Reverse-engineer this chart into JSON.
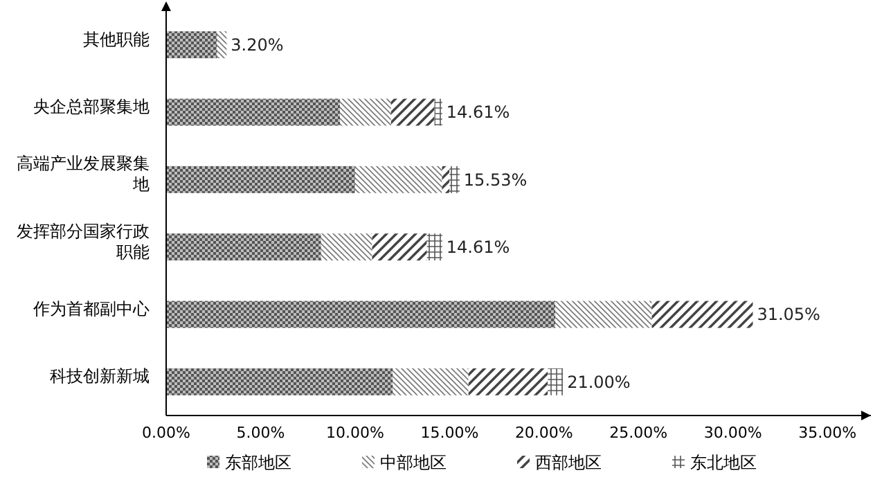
{
  "chart_data": {
    "type": "bar",
    "orientation": "horizontal",
    "stacked": true,
    "categories": [
      "其他职能",
      "央企总部聚集地",
      "高端产业发展聚集地",
      "发挥部分国家行政职能",
      "作为首都副中心",
      "科技创新新城"
    ],
    "series": [
      {
        "name": "东部地区",
        "color": "#555555",
        "values": [
          2.7,
          9.2,
          10.0,
          8.2,
          20.6,
          12.0
        ]
      },
      {
        "name": "中部地区",
        "color": "#777777",
        "values": [
          0.5,
          2.7,
          4.6,
          2.7,
          5.1,
          4.0
        ]
      },
      {
        "name": "西部地区",
        "color": "#444444",
        "values": [
          0,
          2.3,
          0.4,
          2.9,
          5.35,
          4.2
        ]
      },
      {
        "name": "东北地区",
        "color": "#555555",
        "values": [
          0,
          0.41,
          0.53,
          0.81,
          0,
          0.8
        ]
      }
    ],
    "totals": [
      "3.20%",
      "14.61%",
      "15.53%",
      "14.61%",
      "31.05%",
      "21.00%"
    ],
    "xlim": [
      0,
      37.3
    ],
    "xticks": [
      {
        "value": 0,
        "label": "0.00%"
      },
      {
        "value": 5,
        "label": "5.00%"
      },
      {
        "value": 10,
        "label": "10.00%"
      },
      {
        "value": 15,
        "label": "15.00%"
      },
      {
        "value": 20,
        "label": "20.00%"
      },
      {
        "value": 25,
        "label": "25.00%"
      },
      {
        "value": 30,
        "label": "30.00%"
      },
      {
        "value": 35,
        "label": "35.00%"
      }
    ],
    "grid": false,
    "legend": "bottom"
  }
}
